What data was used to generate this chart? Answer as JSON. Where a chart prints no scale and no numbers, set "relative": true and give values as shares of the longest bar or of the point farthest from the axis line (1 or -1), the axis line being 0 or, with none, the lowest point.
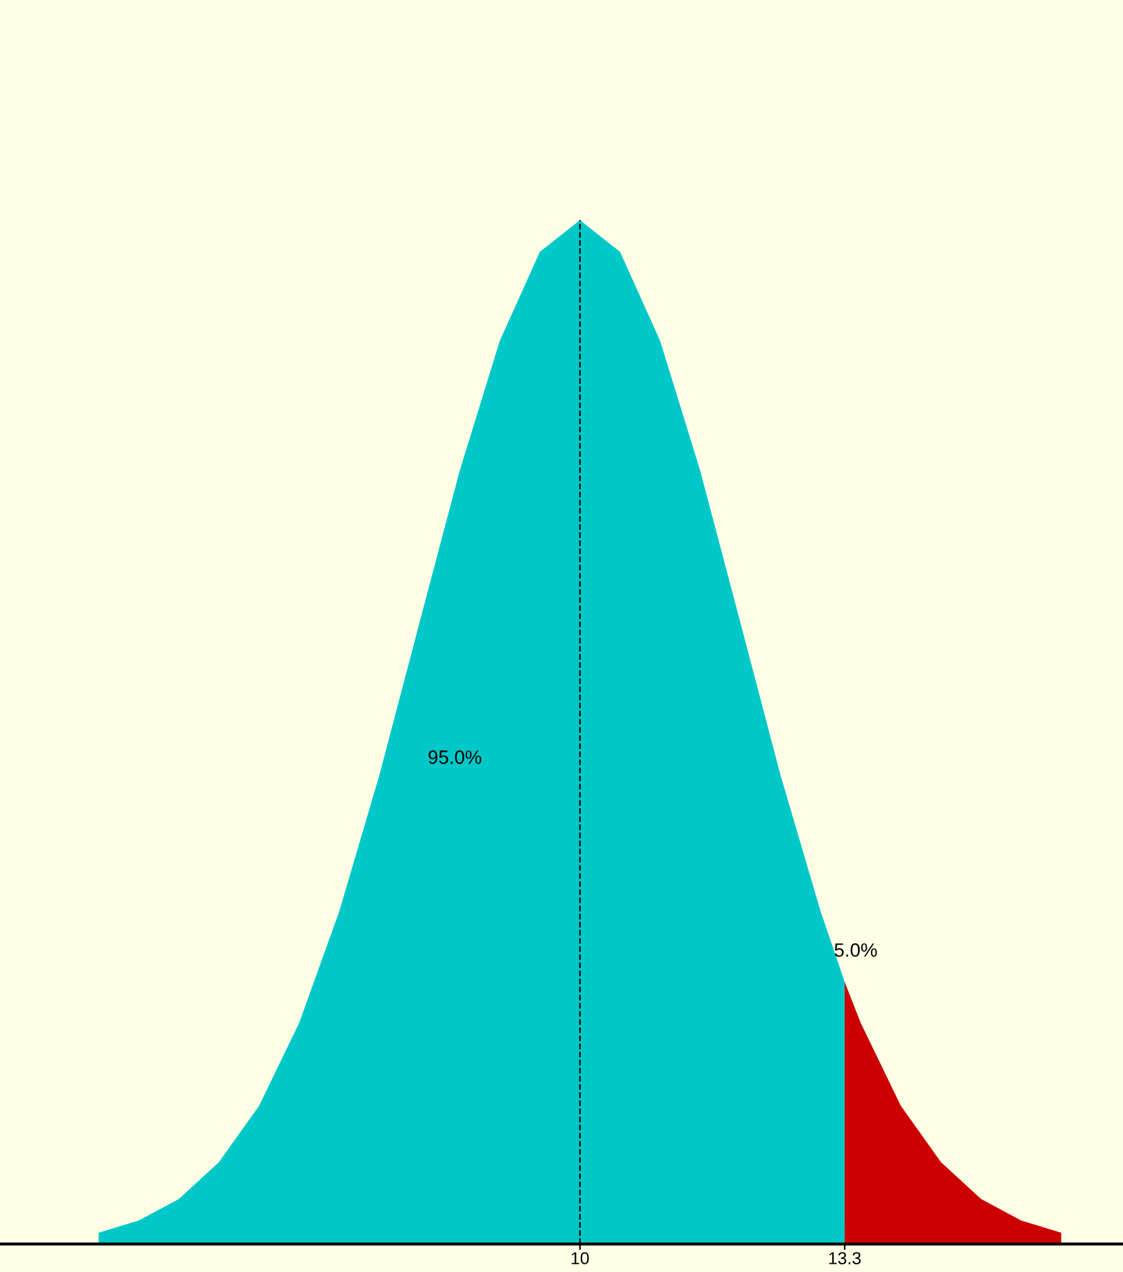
{
  "chart_data": {
    "type": "area",
    "relative": true,
    "tick_labels": "x",
    "grid": false,
    "legend": false,
    "xlim": [
      2.77,
      16.77
    ],
    "xticks": [
      10,
      13.3
    ],
    "series": [
      {
        "color": "#00c8c8",
        "x": [
          4,
          4.5,
          5,
          5.5,
          6,
          6.5,
          7,
          7.5,
          8,
          8.5,
          9,
          9.5,
          10,
          10.5,
          11,
          11.5,
          12,
          12.5,
          13,
          13.3
        ],
        "values": [
          0.011,
          0.023,
          0.044,
          0.08,
          0.135,
          0.216,
          0.325,
          0.458,
          0.607,
          0.755,
          0.882,
          0.969,
          1,
          0.969,
          0.882,
          0.755,
          0.607,
          0.458,
          0.325,
          0.256
        ]
      },
      {
        "color": "#cc0000",
        "x": [
          13.3,
          13.5,
          14,
          14.5,
          15,
          15.5,
          16
        ],
        "values": [
          0.256,
          0.216,
          0.135,
          0.08,
          0.044,
          0.023,
          0.011
        ]
      }
    ],
    "ref_lines": [
      {
        "axis": "x",
        "value": 10,
        "color": "#000000",
        "line_style": "dashed"
      }
    ],
    "annotations": [
      "95.0%",
      "5.0%"
    ]
  }
}
